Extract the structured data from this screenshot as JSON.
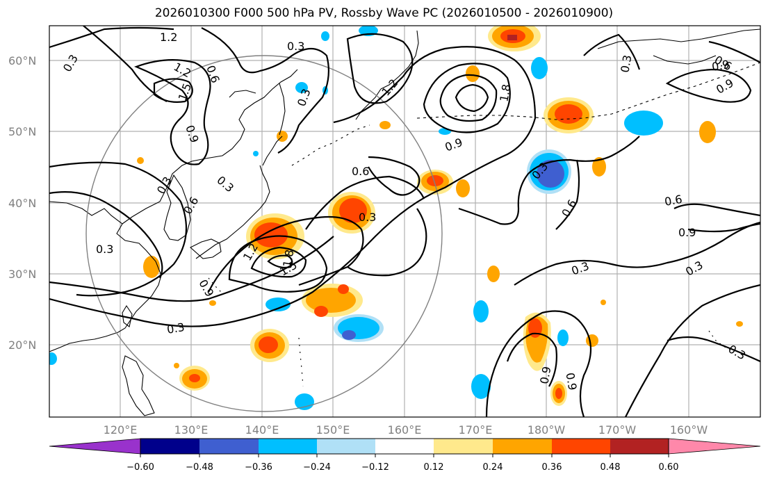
{
  "title": "2026010300 F000 500 hPa PV, Rossby Wave PC (2026010500 - 2026010900)",
  "map": {
    "lat_labels": [
      "60°N",
      "50°N",
      "40°N",
      "30°N",
      "20°N"
    ],
    "lon_labels": [
      "120°E",
      "130°E",
      "140°E",
      "150°E",
      "160°E",
      "170°E",
      "180°W",
      "170°W",
      "160°W"
    ],
    "contour_labels": [
      "1.2",
      "0.3",
      "1.2",
      "1.5",
      "0.6",
      "0.9",
      "0.3",
      "0.3",
      "0.6",
      "0.3",
      "0.3",
      "1.2",
      "1.8",
      "0.9",
      "0.6",
      "0.3",
      "0.3",
      "0.6",
      "0.3",
      "0.9",
      "0.3",
      "1.2",
      "1.8",
      "1.5",
      "0.9",
      "0.3",
      "0.6",
      "0.9",
      "0.3",
      "0.3",
      "0.9",
      "0.9",
      "0.6",
      "0.3",
      "0.9"
    ]
  },
  "colorbar": {
    "ticks": [
      "−0.60",
      "−0.48",
      "−0.36",
      "−0.24",
      "−0.12",
      "0.12",
      "0.24",
      "0.36",
      "0.48",
      "0.60"
    ],
    "colors": [
      "#9932cc",
      "#00008b",
      "#3f5fd0",
      "#00bfff",
      "#b0e0f6",
      "#ffffff",
      "#ffe98c",
      "#ffa500",
      "#ff4500",
      "#b22222",
      "#ff88aa"
    ]
  }
}
